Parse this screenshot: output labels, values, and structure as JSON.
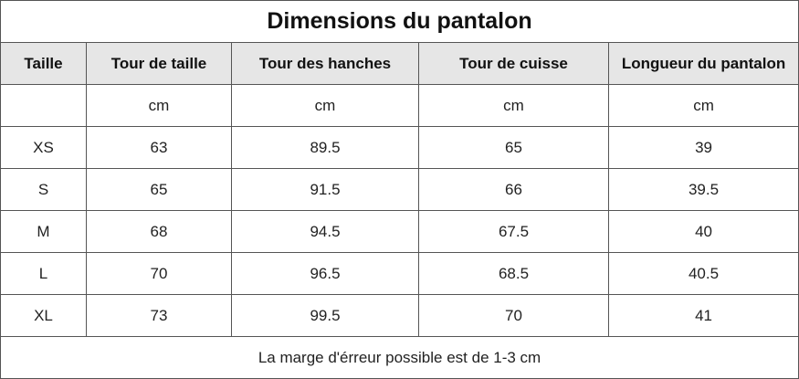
{
  "title": "Dimensions du pantalon",
  "headers": [
    "Taille",
    "Tour de taille",
    "Tour des hanches",
    "Tour de cuisse",
    "Longueur du pantalon"
  ],
  "units": [
    "",
    "cm",
    "cm",
    "cm",
    "cm"
  ],
  "rows": [
    [
      "XS",
      "63",
      "89.5",
      "65",
      "39"
    ],
    [
      "S",
      "65",
      "91.5",
      "66",
      "39.5"
    ],
    [
      "M",
      "68",
      "94.5",
      "67.5",
      "40"
    ],
    [
      "L",
      "70",
      "96.5",
      "68.5",
      "40.5"
    ],
    [
      "XL",
      "73",
      "99.5",
      "70",
      "41"
    ]
  ],
  "footer": "La marge d'érreur possible est de 1-3 cm",
  "colors": {
    "header_bg": "#e6e6e6",
    "border": "#555555",
    "text": "#222222"
  }
}
